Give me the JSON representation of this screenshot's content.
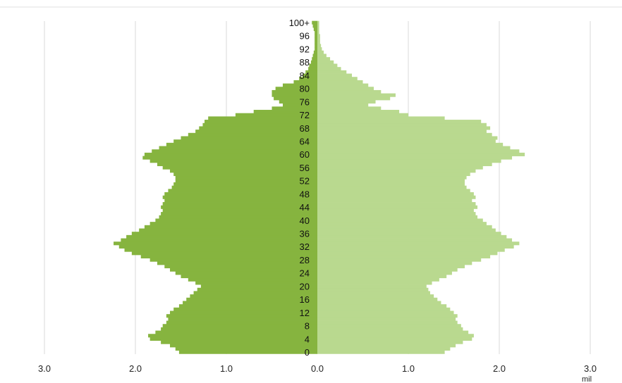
{
  "chart_data": {
    "type": "bar",
    "orientation": "horizontal",
    "layout": "population-pyramid",
    "unit_label": "mil",
    "x_ticks": [
      {
        "value": -3.0,
        "label": "3.0"
      },
      {
        "value": -2.0,
        "label": "2.0"
      },
      {
        "value": -1.0,
        "label": "1.0"
      },
      {
        "value": 0.0,
        "label": "0.0"
      },
      {
        "value": 1.0,
        "label": "1.0"
      },
      {
        "value": 2.0,
        "label": "2.0"
      },
      {
        "value": 3.0,
        "label": "3.0"
      }
    ],
    "xlim": [
      -3.0,
      3.0
    ],
    "grid": true,
    "ages": [
      0,
      1,
      2,
      3,
      4,
      5,
      6,
      7,
      8,
      9,
      10,
      11,
      12,
      13,
      14,
      15,
      16,
      17,
      18,
      19,
      20,
      21,
      22,
      23,
      24,
      25,
      26,
      27,
      28,
      29,
      30,
      31,
      32,
      33,
      34,
      35,
      36,
      37,
      38,
      39,
      40,
      41,
      42,
      43,
      44,
      45,
      46,
      47,
      48,
      49,
      50,
      51,
      52,
      53,
      54,
      55,
      56,
      57,
      58,
      59,
      60,
      61,
      62,
      63,
      64,
      65,
      66,
      67,
      68,
      69,
      70,
      71,
      72,
      73,
      74,
      75,
      76,
      77,
      78,
      79,
      80,
      81,
      82,
      83,
      84,
      85,
      86,
      87,
      88,
      89,
      90,
      91,
      92,
      93,
      94,
      95,
      96,
      97,
      98,
      99,
      100
    ],
    "age_labels": [
      {
        "age": 0,
        "label": "0"
      },
      {
        "age": 4,
        "label": "4"
      },
      {
        "age": 8,
        "label": "8"
      },
      {
        "age": 12,
        "label": "12"
      },
      {
        "age": 16,
        "label": "16"
      },
      {
        "age": 20,
        "label": "20"
      },
      {
        "age": 24,
        "label": "24"
      },
      {
        "age": 28,
        "label": "28"
      },
      {
        "age": 32,
        "label": "32"
      },
      {
        "age": 36,
        "label": "36"
      },
      {
        "age": 40,
        "label": "40"
      },
      {
        "age": 44,
        "label": "44"
      },
      {
        "age": 48,
        "label": "48"
      },
      {
        "age": 52,
        "label": "52"
      },
      {
        "age": 56,
        "label": "56"
      },
      {
        "age": 60,
        "label": "60"
      },
      {
        "age": 64,
        "label": "64"
      },
      {
        "age": 68,
        "label": "68"
      },
      {
        "age": 72,
        "label": "72"
      },
      {
        "age": 76,
        "label": "76"
      },
      {
        "age": 80,
        "label": "80"
      },
      {
        "age": 84,
        "label": "84"
      },
      {
        "age": 88,
        "label": "88"
      },
      {
        "age": 92,
        "label": "92"
      },
      {
        "age": 96,
        "label": "96"
      },
      {
        "age": 100,
        "label": "100+"
      }
    ],
    "series": [
      {
        "side": "left",
        "color": "#86b43f",
        "values": [
          1.52,
          1.56,
          1.62,
          1.72,
          1.84,
          1.86,
          1.78,
          1.72,
          1.7,
          1.66,
          1.64,
          1.66,
          1.62,
          1.58,
          1.52,
          1.48,
          1.44,
          1.4,
          1.36,
          1.32,
          1.28,
          1.34,
          1.42,
          1.5,
          1.56,
          1.62,
          1.68,
          1.76,
          1.84,
          1.94,
          2.04,
          2.12,
          2.18,
          2.24,
          2.16,
          2.1,
          2.04,
          1.96,
          1.9,
          1.84,
          1.78,
          1.74,
          1.72,
          1.7,
          1.72,
          1.7,
          1.68,
          1.7,
          1.68,
          1.64,
          1.6,
          1.58,
          1.56,
          1.56,
          1.58,
          1.62,
          1.7,
          1.76,
          1.84,
          1.92,
          1.9,
          1.82,
          1.74,
          1.66,
          1.58,
          1.5,
          1.42,
          1.34,
          1.3,
          1.26,
          1.24,
          1.2,
          0.9,
          0.7,
          0.5,
          0.38,
          0.42,
          0.48,
          0.5,
          0.5,
          0.46,
          0.38,
          0.26,
          0.2,
          0.16,
          0.13,
          0.1,
          0.09,
          0.07,
          0.06,
          0.05,
          0.04,
          0.03,
          0.03,
          0.03,
          0.03,
          0.03,
          0.03,
          0.04,
          0.05,
          0.06
        ]
      },
      {
        "side": "right",
        "color": "#b9d98f",
        "values": [
          1.4,
          1.46,
          1.52,
          1.6,
          1.7,
          1.72,
          1.66,
          1.6,
          1.58,
          1.54,
          1.52,
          1.54,
          1.5,
          1.46,
          1.42,
          1.36,
          1.32,
          1.28,
          1.24,
          1.22,
          1.2,
          1.26,
          1.34,
          1.42,
          1.48,
          1.54,
          1.62,
          1.7,
          1.8,
          1.9,
          1.98,
          2.06,
          2.16,
          2.22,
          2.14,
          2.08,
          2.02,
          1.96,
          1.92,
          1.86,
          1.82,
          1.76,
          1.74,
          1.72,
          1.76,
          1.74,
          1.7,
          1.74,
          1.72,
          1.68,
          1.64,
          1.62,
          1.62,
          1.64,
          1.68,
          1.74,
          1.82,
          1.92,
          2.02,
          2.14,
          2.28,
          2.22,
          2.12,
          2.04,
          1.96,
          1.98,
          1.92,
          1.86,
          1.9,
          1.86,
          1.8,
          1.4,
          1.0,
          0.9,
          0.7,
          0.56,
          0.64,
          0.8,
          0.86,
          0.7,
          0.62,
          0.56,
          0.5,
          0.44,
          0.38,
          0.32,
          0.26,
          0.22,
          0.18,
          0.14,
          0.1,
          0.07,
          0.05,
          0.04,
          0.03,
          0.03,
          0.03,
          0.02,
          0.02,
          0.02,
          0.02
        ]
      }
    ]
  }
}
